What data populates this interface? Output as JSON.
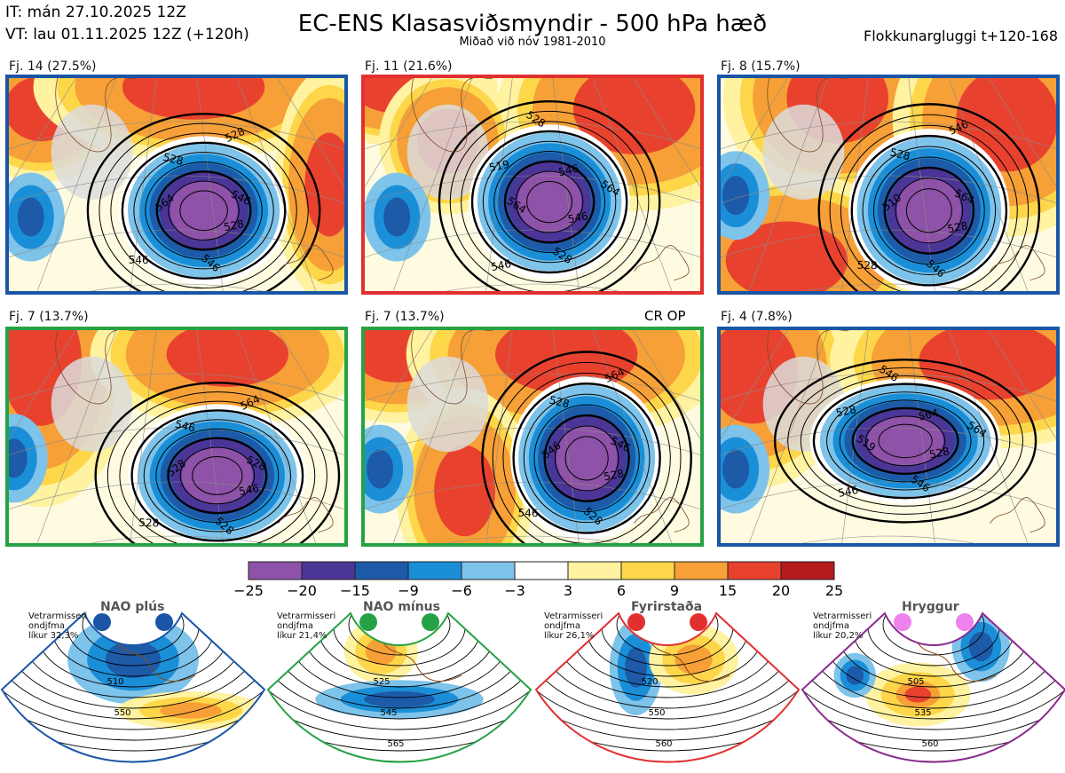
{
  "header": {
    "it": "IT: mán 27.10.2025 12Z",
    "vt": "VT: lau 01.11.2025 12Z  (+120h)",
    "title": "EC-ENS Klasasviðsmyndir - 500 hPa hæð",
    "subtitle": "Miðað við nóv 1981-2010",
    "window": "Flokkunargluggi t+120-168"
  },
  "colors": {
    "blue_frame": "#1a55a6",
    "red_frame": "#e23030",
    "green_frame": "#25a245",
    "purple_frame": "#8a2a8f"
  },
  "chart_data": [
    {
      "type": "heatmap",
      "id": "cluster-panels",
      "title": "EC-ENS Klasasviðsmyndir - 500 hPa hæð",
      "panels": [
        {
          "label": "Fj. 14 (27.5%)",
          "frame": "blue",
          "contour_labels": [
            "528",
            "546",
            "546",
            "564",
            "528",
            "528",
            "546"
          ]
        },
        {
          "label": "Fj. 11 (21.6%)",
          "frame": "red",
          "contour_labels": [
            "546",
            "528",
            "546",
            "564",
            "519",
            "528",
            "546",
            "564"
          ]
        },
        {
          "label": "Fj. 8 (15.7%)",
          "frame": "blue",
          "contour_labels": [
            "528",
            "546",
            "528",
            "510",
            "528",
            "546",
            "564"
          ]
        },
        {
          "label": "Fj. 7 (13.7%)",
          "frame": "green",
          "contour_labels": [
            "546",
            "528",
            "528",
            "528",
            "546",
            "564",
            "528"
          ]
        },
        {
          "label": "Fj. 7 (13.7%)",
          "frame": "green",
          "tag": "CR OP",
          "contour_labels": [
            "528",
            "528",
            "546",
            "546",
            "528",
            "564",
            "546"
          ]
        },
        {
          "label": "Fj. 4 (7.8%)",
          "frame": "blue",
          "contour_labels": [
            "528",
            "546",
            "546",
            "519",
            "528",
            "546",
            "564",
            "564"
          ]
        }
      ]
    },
    {
      "type": "colorbar",
      "id": "anomaly-colorbar",
      "ticks": [
        "−25",
        "−20",
        "−15",
        "−9",
        "−6",
        "−3",
        "3",
        "6",
        "9",
        "15",
        "20",
        "25"
      ],
      "bin_colors": [
        "#8e52a8",
        "#4b3597",
        "#1d5aa8",
        "#1a8fd8",
        "#7ec3ea",
        "#ffffff",
        "#fff2a0",
        "#fdd64a",
        "#f6a037",
        "#e8422f",
        "#b51a1f"
      ]
    },
    {
      "type": "heatmap",
      "id": "weather-regimes",
      "regimes": [
        {
          "name": "NAO plús",
          "frame": "blue",
          "prob_lines": [
            "Vetrarmisseri",
            "ondjfma",
            "líkur 32,3%"
          ],
          "contour_labels": [
            "510",
            "550"
          ],
          "dot_color": "#1a55a6"
        },
        {
          "name": "NAO mínus",
          "frame": "green",
          "prob_lines": [
            "Vetrarmisseri",
            "ondjfma",
            "líkur 21,4%"
          ],
          "contour_labels": [
            "525",
            "545",
            "565"
          ],
          "dot_color": "#25a245"
        },
        {
          "name": "Fyrirstaða",
          "frame": "red",
          "prob_lines": [
            "Vetrarmisseri",
            "ondjfma",
            "líkur 26,1%"
          ],
          "contour_labels": [
            "520",
            "550",
            "560"
          ],
          "dot_color": "#e23030"
        },
        {
          "name": "Hryggur",
          "frame": "purple",
          "prob_lines": [
            "Vetrarmisseri",
            "ondjfma",
            "líkur 20,2%"
          ],
          "contour_labels": [
            "505",
            "535",
            "560"
          ],
          "dot_color": "#ee82ee"
        }
      ]
    }
  ]
}
